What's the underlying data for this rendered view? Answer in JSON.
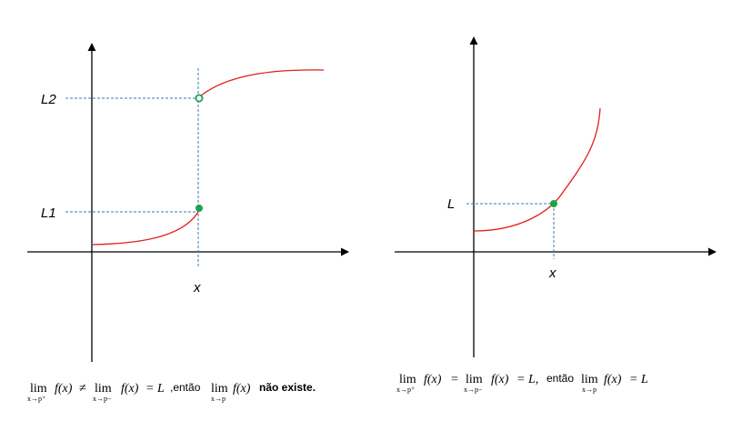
{
  "colors": {
    "curve": "#e0201e",
    "dashed": "#3b78b5",
    "point": "#1aa34a",
    "axis": "#000000"
  },
  "left_graph": {
    "label_upper": "L2",
    "label_lower": "L1",
    "label_x": "x",
    "open_point": "open circle at L2",
    "closed_point": "filled circle at L1"
  },
  "right_graph": {
    "label_y": "L",
    "label_x": "x",
    "closed_point": "filled circle at L"
  },
  "formula_left": {
    "lim": "lim",
    "sub_right": "x→p⁺",
    "sub_left": "x→p−",
    "sub_p": "x→p",
    "fx": "f(x)",
    "neq": "≠",
    "eq_L": "= L",
    "then": ",então",
    "conclusion": "não existe."
  },
  "formula_right": {
    "lim": "lim",
    "sub_right": "x→p⁺",
    "sub_left": "x→p−",
    "sub_p": "x→p",
    "fx": "f(x)",
    "eq": "=",
    "eq_L_comma": "= L,",
    "then": "então",
    "eq_L": "= L"
  }
}
